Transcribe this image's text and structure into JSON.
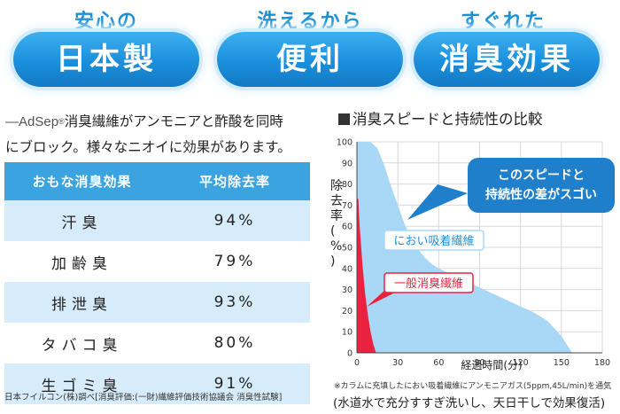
{
  "features": [
    {
      "top": "安心の",
      "main": "日本製"
    },
    {
      "top": "洗えるから",
      "main": "便利"
    },
    {
      "top": "すぐれた",
      "main": "消臭効果"
    }
  ],
  "intro": {
    "brand": "AdSep",
    "reg": "®",
    "line1_rest": "消臭繊維がアンモニアと酢酸を同時",
    "line2": "にブロック。様々なニオイに効果があります。"
  },
  "table": {
    "headers": [
      "おもな消臭効果",
      "平均除去率"
    ],
    "rows": [
      {
        "name": "汗臭",
        "rate": "94%"
      },
      {
        "name": "加齢臭",
        "rate": "79%"
      },
      {
        "name": "排泄臭",
        "rate": "93%"
      },
      {
        "name": "タバコ臭",
        "rate": "80%"
      },
      {
        "name": "生ゴミ臭",
        "rate": "91%"
      }
    ],
    "source": "日本フイルコン(株)調べ[消臭評価:(一財)繊維評価技術協議会 消臭性試験]"
  },
  "chart_title": "消臭スピードと持続性の比較",
  "chart_data": {
    "type": "area",
    "title": "消臭スピードと持続性の比較",
    "xlabel": "経過時間(分)",
    "ylabel": "除去率(%)",
    "xlim": [
      0,
      180
    ],
    "ylim": [
      0,
      100
    ],
    "xticks": [
      "0",
      "30",
      "60",
      "90",
      "120",
      "150",
      "180"
    ],
    "yticks": [
      "0",
      "10",
      "20",
      "30",
      "40",
      "50",
      "60",
      "70",
      "80",
      "90",
      "100"
    ],
    "series": [
      {
        "name": "におい吸着繊維",
        "color": "#a8d8f6",
        "x": [
          0,
          10,
          15,
          20,
          25,
          30,
          35,
          40,
          45,
          50,
          55,
          60,
          70,
          80,
          90,
          100,
          110,
          120,
          130,
          140,
          150,
          155,
          158
        ],
        "y": [
          100,
          100,
          97,
          89,
          79,
          70,
          61,
          54,
          49,
          45,
          42,
          40,
          37,
          34,
          31,
          28,
          25,
          22,
          19,
          15,
          8,
          3,
          0
        ]
      },
      {
        "name": "一般消臭繊維",
        "color": "#e8223f",
        "x": [
          0,
          1,
          2,
          4,
          6,
          8,
          10,
          12,
          14
        ],
        "y": [
          73,
          73,
          60,
          42,
          28,
          18,
          10,
          4,
          0
        ]
      }
    ],
    "callout": "このスピードと持続性の差がスゴい",
    "callout_lines": [
      "このスピードと",
      "持続性の差がスゴい"
    ]
  },
  "note": "※カラムに充填したにおい吸着繊維にアンモニアガス(5ppm,45L/min)を通気",
  "note2": "(水道水で充分すすぎ洗いし、天日干しで効果復活)",
  "colors": {
    "accent": "#1b8fdc",
    "header": "#3aa3e0",
    "rowTint": "#d6ecfa",
    "callout": "#1f7fcb",
    "red": "#e8223f"
  }
}
